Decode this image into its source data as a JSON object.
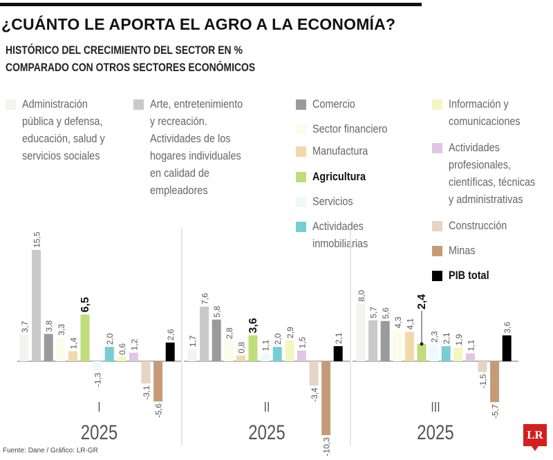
{
  "title": "¿CUÁNTO LE APORTA EL AGRO A LA ECONOMÍA?",
  "subtitle_lines": [
    "HISTÓRICO DEL CRECIMIENTO DEL SECTOR EN %",
    "COMPARADO CON OTROS SECTORES ECONÓMICOS"
  ],
  "source": "Fuente: Dane / Gráfico: LR-GR",
  "logo": "LR",
  "chart_data": {
    "type": "bar",
    "categories": [
      "I 2025",
      "II 2025",
      "III 2025"
    ],
    "category_labels": [
      {
        "quarter": "I",
        "year": "2025"
      },
      {
        "quarter": "II",
        "year": "2025"
      },
      {
        "quarter": "III",
        "year": "2025"
      }
    ],
    "ylabel": "%",
    "grid": false,
    "legend_position": "top",
    "highlight": "Agricultura",
    "series": [
      {
        "name": "Administración\npública y defensa,\neducación, salud y\nservicios sociales",
        "color": "#f3f3f1",
        "values": [
          3.7,
          1.7,
          8.0
        ]
      },
      {
        "name": "Arte, entretenimiento\ny recreación.\nActividades de los\nhogares individuales\nen calidad de\nempleadores",
        "color": "#c9c9c9",
        "values": [
          15.5,
          7.6,
          5.7
        ]
      },
      {
        "name": "Comercio",
        "color": "#9a9a9a",
        "values": [
          3.8,
          5.8,
          5.6
        ]
      },
      {
        "name": "Sector financiero",
        "color": "#fdfbe9",
        "values": [
          3.3,
          2.8,
          4.3
        ]
      },
      {
        "name": "Manufactura",
        "color": "#f3d9a9",
        "values": [
          1.4,
          0.8,
          4.1
        ]
      },
      {
        "name": "Agricultura",
        "color": "#bfdd7b",
        "values": [
          6.5,
          3.6,
          2.4
        ]
      },
      {
        "name": "Servicios",
        "color": "#eefaf8",
        "values": [
          -1.3,
          1.1,
          2.3
        ]
      },
      {
        "name": "Actividades\ninmobiliarias",
        "color": "#77cdd4",
        "values": [
          2.0,
          2.0,
          2.1
        ]
      },
      {
        "name": "Información y\ncomunicaciones",
        "color": "#f2f7c1",
        "values": [
          0.6,
          2.9,
          1.9
        ]
      },
      {
        "name": "Actividades\nprofesionales,\ncientíficas, técnicas\ny administrativas",
        "color": "#e1c5e5",
        "values": [
          1.2,
          1.5,
          1.1
        ]
      },
      {
        "name": "Construcción",
        "color": "#e6d4c4",
        "values": [
          -3.1,
          -3.4,
          -1.5
        ]
      },
      {
        "name": "Minas",
        "color": "#c59b77",
        "values": [
          -5.6,
          -10.3,
          -5.7
        ]
      },
      {
        "name": "PIB total",
        "color": "#000000",
        "values": [
          2.6,
          2.1,
          3.6
        ]
      }
    ],
    "data_labels": [
      [
        "3,7",
        "15,5",
        "3,8",
        "3,3",
        "1,4",
        "6,5",
        "-1,3",
        "2,0",
        "0,6",
        "1,2",
        "-3,1",
        "-5,6",
        "2,6"
      ],
      [
        "1,7",
        "7,6",
        "5,8",
        "2,8",
        "0,8",
        "3,6",
        "1,1",
        "2,0",
        "2,9",
        "1,5",
        "-3,4",
        "-10,3",
        "2,1"
      ],
      [
        "8,0",
        "5,7",
        "5,6",
        "4,3",
        "4,1",
        "2,4",
        "2,3",
        "2,1",
        "1,9",
        "1,1",
        "-1,5",
        "-5,7",
        "3,6"
      ]
    ]
  }
}
